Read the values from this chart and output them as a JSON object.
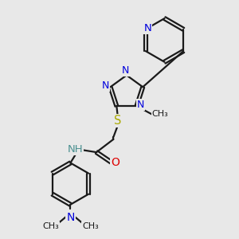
{
  "bg": "#e8e8e8",
  "bond_color": "#1a1a1a",
  "N_color": "#0000dd",
  "O_color": "#dd0000",
  "S_color": "#aaaa00",
  "H_color": "#4a9090",
  "figsize": [
    3.0,
    3.0
  ],
  "dpi": 100,
  "xlim": [
    0,
    10
  ],
  "ylim": [
    0,
    10
  ],
  "lw": 1.6
}
